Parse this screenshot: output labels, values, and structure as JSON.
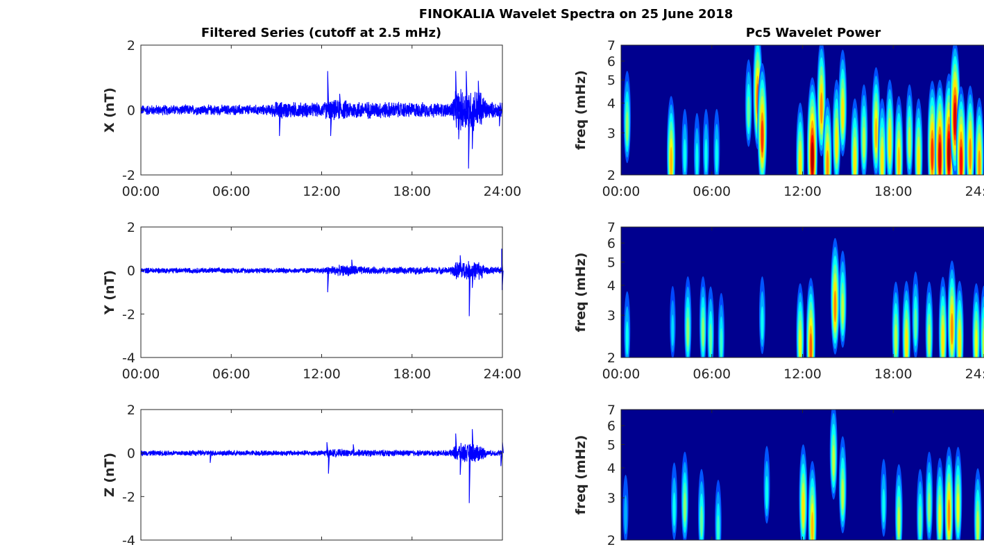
{
  "chart_data": {
    "title": "FINOKALIA Wavelet Spectra on 25 June 2018",
    "left_title": "Filtered Series (cutoff at 2.5 mHz)",
    "right_title": "Pc5 Wavelet Power",
    "xticks": [
      "00:00",
      "06:00",
      "12:00",
      "18:00",
      "24:00"
    ],
    "xlim_hours": [
      0,
      24
    ],
    "series_color": "#0000FF",
    "series": [
      {
        "name": "X",
        "type": "line",
        "ylabel": "X (nT)",
        "ylim": [
          -2,
          2
        ],
        "yticks": [
          "-2",
          "0",
          "2"
        ],
        "ytick_values": [
          -2,
          0,
          2
        ],
        "noise_envelope": [
          [
            0,
            0.15
          ],
          [
            8.5,
            0.15
          ],
          [
            9,
            0.25
          ],
          [
            12,
            0.2
          ],
          [
            12.5,
            0.3
          ],
          [
            15,
            0.25
          ],
          [
            20.5,
            0.2
          ],
          [
            21,
            0.6
          ],
          [
            22.5,
            0.6
          ],
          [
            23,
            0.25
          ],
          [
            24,
            0.2
          ]
        ],
        "events": [
          [
            9.2,
            -0.8
          ],
          [
            12.4,
            1.2
          ],
          [
            12.6,
            -0.8
          ],
          [
            13.2,
            0.5
          ],
          [
            20.9,
            1.2
          ],
          [
            21.1,
            -0.9
          ],
          [
            21.6,
            1.2
          ],
          [
            21.75,
            -1.8
          ],
          [
            22.0,
            -1.2
          ],
          [
            22.4,
            0.9
          ],
          [
            23.8,
            -0.5
          ]
        ]
      },
      {
        "name": "Y",
        "type": "line",
        "ylabel": "Y (nT)",
        "ylim": [
          -4,
          2
        ],
        "yticks": [
          "-4",
          "-2",
          "0",
          "2"
        ],
        "ytick_values": [
          -4,
          -2,
          0,
          2
        ],
        "noise_envelope": [
          [
            0,
            0.12
          ],
          [
            12,
            0.12
          ],
          [
            12.5,
            0.2
          ],
          [
            14,
            0.25
          ],
          [
            15,
            0.15
          ],
          [
            20.5,
            0.15
          ],
          [
            21,
            0.4
          ],
          [
            22.5,
            0.4
          ],
          [
            23,
            0.15
          ],
          [
            24,
            0.15
          ]
        ],
        "events": [
          [
            12.4,
            -1.0
          ],
          [
            14.0,
            0.5
          ],
          [
            21.2,
            0.7
          ],
          [
            21.8,
            -2.1
          ],
          [
            22.0,
            -0.8
          ],
          [
            23.95,
            1.0
          ],
          [
            23.98,
            -0.9
          ]
        ]
      },
      {
        "name": "Z",
        "type": "line",
        "ylabel": "Z (nT)",
        "ylim": [
          -4,
          2
        ],
        "yticks": [
          "-4",
          "-2",
          "0",
          "2"
        ],
        "ytick_values": [
          -4,
          -2,
          0,
          2
        ],
        "noise_envelope": [
          [
            0,
            0.12
          ],
          [
            12,
            0.12
          ],
          [
            12.5,
            0.18
          ],
          [
            14,
            0.15
          ],
          [
            20.5,
            0.12
          ],
          [
            21,
            0.4
          ],
          [
            22.5,
            0.4
          ],
          [
            23,
            0.12
          ],
          [
            24,
            0.12
          ]
        ],
        "events": [
          [
            4.6,
            -0.45
          ],
          [
            12.35,
            0.5
          ],
          [
            12.45,
            -0.95
          ],
          [
            14.1,
            0.4
          ],
          [
            20.9,
            0.9
          ],
          [
            21.2,
            -1.0
          ],
          [
            21.8,
            -2.3
          ],
          [
            22.0,
            1.1
          ],
          [
            23.9,
            -0.6
          ],
          [
            24.0,
            0.5
          ]
        ]
      }
    ],
    "wavelet": {
      "type": "heatmap",
      "ylabel": "freq (mHz)",
      "ylim_mHz": [
        2,
        7
      ],
      "yscale": "log",
      "yticks": [
        "2",
        "3",
        "4",
        "5",
        "6",
        "7"
      ],
      "ytick_values": [
        2,
        3,
        4,
        5,
        6,
        7
      ],
      "colormap": "jet",
      "background": "#00008F",
      "bursts_note": "[hour, peak freq mHz, normalized power 0-1]",
      "panels": [
        {
          "name": "X",
          "bursts": [
            [
              0.4,
              3.5,
              0.45
            ],
            [
              3.3,
              2.5,
              0.65
            ],
            [
              4.2,
              2.6,
              0.3
            ],
            [
              5.0,
              2.5,
              0.3
            ],
            [
              5.6,
              2.6,
              0.3
            ],
            [
              6.3,
              2.6,
              0.3
            ],
            [
              8.4,
              4.0,
              0.4
            ],
            [
              9.0,
              4.6,
              0.75
            ],
            [
              9.3,
              3.2,
              0.8
            ],
            [
              11.8,
              2.4,
              0.6
            ],
            [
              12.6,
              2.6,
              0.95
            ],
            [
              13.2,
              4.2,
              0.7
            ],
            [
              13.6,
              2.4,
              0.7
            ],
            [
              14.2,
              3.0,
              0.6
            ],
            [
              14.6,
              4.0,
              0.6
            ],
            [
              15.4,
              2.5,
              0.6
            ],
            [
              16.0,
              3.0,
              0.5
            ],
            [
              16.8,
              3.3,
              0.65
            ],
            [
              17.2,
              2.5,
              0.6
            ],
            [
              17.7,
              3.0,
              0.6
            ],
            [
              18.3,
              2.5,
              0.65
            ],
            [
              19.0,
              3.0,
              0.5
            ],
            [
              19.6,
              2.5,
              0.6
            ],
            [
              20.5,
              2.7,
              0.8
            ],
            [
              21.0,
              2.6,
              0.9
            ],
            [
              21.6,
              2.7,
              0.95
            ],
            [
              22.0,
              3.8,
              0.9
            ],
            [
              22.4,
              2.5,
              0.85
            ],
            [
              23.0,
              2.7,
              0.7
            ],
            [
              23.6,
              2.4,
              0.7
            ]
          ]
        },
        {
          "name": "Y",
          "bursts": [
            [
              0.4,
              2.6,
              0.3
            ],
            [
              3.4,
              2.8,
              0.25
            ],
            [
              4.4,
              2.8,
              0.45
            ],
            [
              5.4,
              2.8,
              0.45
            ],
            [
              5.9,
              2.6,
              0.4
            ],
            [
              6.6,
              2.5,
              0.35
            ],
            [
              9.3,
              3.0,
              0.3
            ],
            [
              11.8,
              2.5,
              0.55
            ],
            [
              12.5,
              2.4,
              0.75
            ],
            [
              14.1,
              3.6,
              0.7
            ],
            [
              14.6,
              3.5,
              0.5
            ],
            [
              18.1,
              2.6,
              0.5
            ],
            [
              18.8,
              2.5,
              0.6
            ],
            [
              19.4,
              3.0,
              0.4
            ],
            [
              20.3,
              2.6,
              0.5
            ],
            [
              21.2,
              2.6,
              0.6
            ],
            [
              21.8,
              2.9,
              0.7
            ],
            [
              22.3,
              2.5,
              0.6
            ],
            [
              23.4,
              2.5,
              0.55
            ],
            [
              23.9,
              2.5,
              0.5
            ]
          ]
        },
        {
          "name": "Z",
          "bursts": [
            [
              0.3,
              2.7,
              0.2
            ],
            [
              3.5,
              2.9,
              0.3
            ],
            [
              4.2,
              3.0,
              0.45
            ],
            [
              5.3,
              2.6,
              0.4
            ],
            [
              6.4,
              2.4,
              0.35
            ],
            [
              9.6,
              3.4,
              0.3
            ],
            [
              12.0,
              3.0,
              0.6
            ],
            [
              12.6,
              2.5,
              0.65
            ],
            [
              14.0,
              4.7,
              0.5
            ],
            [
              14.6,
              3.4,
              0.5
            ],
            [
              17.3,
              3.0,
              0.3
            ],
            [
              18.3,
              2.6,
              0.5
            ],
            [
              19.7,
              2.6,
              0.4
            ],
            [
              20.3,
              3.0,
              0.45
            ],
            [
              21.0,
              2.7,
              0.55
            ],
            [
              21.6,
              2.8,
              0.7
            ],
            [
              22.2,
              3.0,
              0.55
            ],
            [
              23.5,
              2.5,
              0.5
            ]
          ]
        }
      ]
    }
  }
}
